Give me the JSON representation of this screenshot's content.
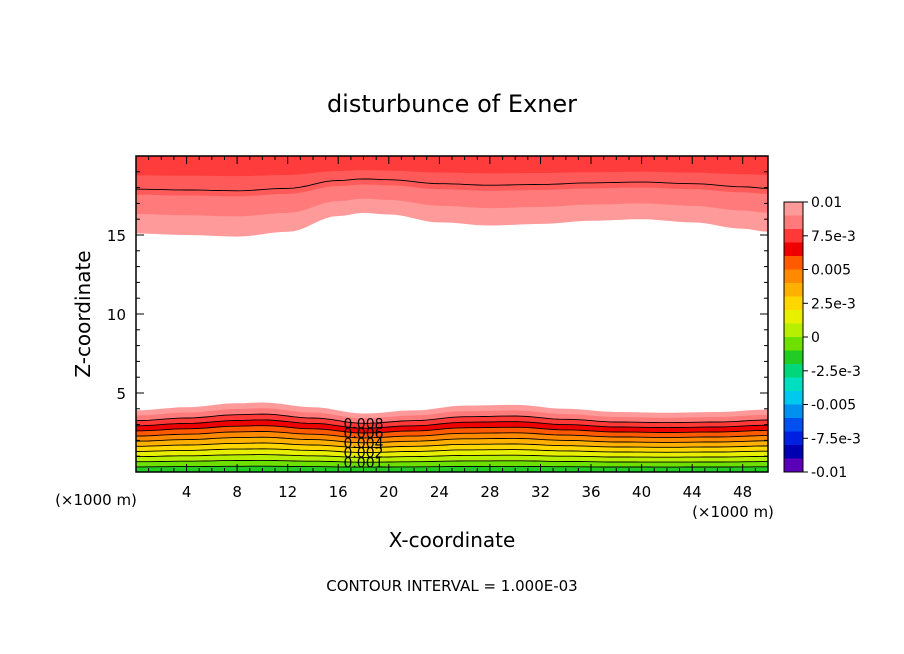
{
  "chart_data": {
    "type": "filled-contour",
    "title": "disturbunce of Exner",
    "xlabel": "X-coordinate",
    "ylabel": "Z-coordinate",
    "x_unit_left": "(×1000 m)",
    "x_unit_right": "(×1000 m)",
    "xlim": [
      0,
      50
    ],
    "ylim": [
      0,
      20
    ],
    "x_ticks": [
      4,
      8,
      12,
      16,
      20,
      24,
      28,
      32,
      36,
      40,
      44,
      48
    ],
    "y_ticks": [
      5,
      10,
      15
    ],
    "contour_interval_text": "CONTOUR INTERVAL = 1.000E-03",
    "contour_labels": [
      "0.008",
      "0.006",
      "0.004",
      "0.002",
      "0.001"
    ],
    "colorbar": {
      "labels": [
        "0.01",
        "7.5e-3",
        "0.005",
        "2.5e-3",
        "0",
        "-2.5e-3",
        "-0.005",
        "-7.5e-3",
        "-0.01"
      ],
      "colors": [
        "#ff9a9a",
        "#ff7a7a",
        "#ff3838",
        "#ee0000",
        "#ff5a00",
        "#ff8a00",
        "#ffb000",
        "#ffd700",
        "#e8f000",
        "#b8ee00",
        "#6ee000",
        "#22cc22",
        "#00d77a",
        "#00e0c0",
        "#00c8ee",
        "#0090f0",
        "#0050f0",
        "#0020e0",
        "#0000b0",
        "#5a00b8"
      ]
    },
    "lower_band": {
      "x": [
        0,
        4,
        8,
        10,
        14,
        18,
        22,
        26,
        30,
        34,
        38,
        42,
        46,
        50
      ],
      "top_z": [
        3.9,
        4.1,
        4.35,
        4.4,
        4.1,
        3.7,
        3.9,
        4.2,
        4.25,
        4.0,
        3.8,
        3.75,
        3.8,
        3.95
      ]
    },
    "upper_band": {
      "x": [
        0,
        4,
        8,
        12,
        16,
        18,
        20,
        24,
        28,
        32,
        36,
        40,
        44,
        48,
        50
      ],
      "bottom_z": [
        15.1,
        15.0,
        14.9,
        15.2,
        16.2,
        16.4,
        16.3,
        15.8,
        15.6,
        15.7,
        15.9,
        16.0,
        15.8,
        15.4,
        15.2
      ]
    }
  }
}
